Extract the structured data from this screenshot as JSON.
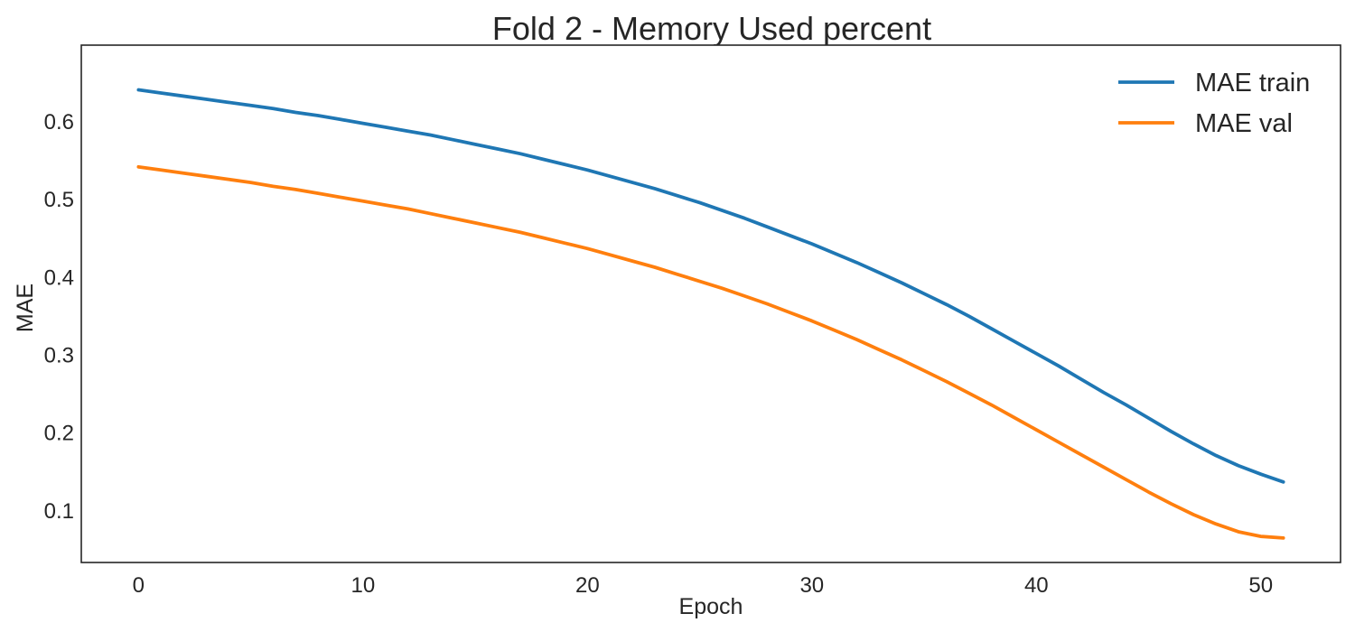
{
  "chart_data": {
    "type": "line",
    "title": "Fold 2 - Memory Used percent",
    "xlabel": "Epoch",
    "ylabel": "MAE",
    "xlim": [
      -2.55,
      53.55
    ],
    "ylim": [
      0.0325,
      0.6975
    ],
    "xticks": [
      0,
      10,
      20,
      30,
      40,
      50
    ],
    "yticks": [
      0.1,
      0.2,
      0.3,
      0.4,
      0.5,
      0.6
    ],
    "xtick_labels": [
      "0",
      "10",
      "20",
      "30",
      "40",
      "50"
    ],
    "ytick_labels": [
      "0.1",
      "0.2",
      "0.3",
      "0.4",
      "0.5",
      "0.6"
    ],
    "grid": false,
    "legend_position": "top-right",
    "x": [
      0,
      1,
      2,
      3,
      4,
      5,
      6,
      7,
      8,
      9,
      10,
      11,
      12,
      13,
      14,
      15,
      16,
      17,
      18,
      19,
      20,
      21,
      22,
      23,
      24,
      25,
      26,
      27,
      28,
      29,
      30,
      31,
      32,
      33,
      34,
      35,
      36,
      37,
      38,
      39,
      40,
      41,
      42,
      43,
      44,
      45,
      46,
      47,
      48,
      49,
      50,
      51
    ],
    "series": [
      {
        "name": "MAE train",
        "color": "#1f77b4",
        "values": [
          0.64,
          0.636,
          0.632,
          0.628,
          0.624,
          0.62,
          0.616,
          0.611,
          0.607,
          0.602,
          0.597,
          0.592,
          0.587,
          0.582,
          0.576,
          0.57,
          0.564,
          0.558,
          0.551,
          0.544,
          0.537,
          0.529,
          0.521,
          0.513,
          0.504,
          0.495,
          0.485,
          0.475,
          0.464,
          0.453,
          0.442,
          0.43,
          0.418,
          0.405,
          0.392,
          0.378,
          0.364,
          0.349,
          0.333,
          0.317,
          0.301,
          0.285,
          0.268,
          0.251,
          0.235,
          0.218,
          0.201,
          0.185,
          0.17,
          0.157,
          0.146,
          0.136
        ]
      },
      {
        "name": "MAE val",
        "color": "#ff7f0e",
        "values": [
          0.541,
          0.537,
          0.533,
          0.529,
          0.525,
          0.521,
          0.516,
          0.512,
          0.507,
          0.502,
          0.497,
          0.492,
          0.487,
          0.481,
          0.475,
          0.469,
          0.463,
          0.457,
          0.45,
          0.443,
          0.436,
          0.428,
          0.42,
          0.412,
          0.403,
          0.394,
          0.385,
          0.375,
          0.365,
          0.354,
          0.343,
          0.331,
          0.319,
          0.306,
          0.293,
          0.279,
          0.265,
          0.25,
          0.235,
          0.219,
          0.203,
          0.187,
          0.171,
          0.155,
          0.139,
          0.123,
          0.108,
          0.094,
          0.082,
          0.072,
          0.066,
          0.064
        ]
      }
    ]
  }
}
